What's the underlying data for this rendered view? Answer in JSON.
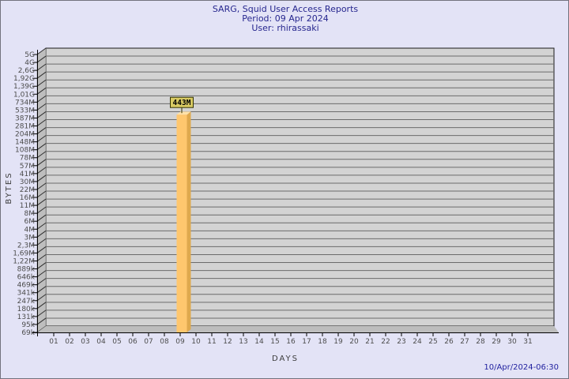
{
  "header": {
    "title": "SARG, Squid User Access Reports",
    "period": "Period: 09 Apr 2024",
    "user": "User: rhirassaki"
  },
  "footer": {
    "generated": "10/Apr/2024-06:30"
  },
  "chart_data": {
    "type": "bar",
    "title": "SARG, Squid User Access Reports",
    "subtitle": "Period: 09 Apr 2024",
    "user_line": "User: rhirassaki",
    "xlabel": "DAYS",
    "ylabel": "BYTES",
    "y_scale": "log",
    "grid": "horizontal",
    "legend": "none",
    "x_categories": [
      "01",
      "02",
      "03",
      "04",
      "05",
      "06",
      "07",
      "08",
      "09",
      "10",
      "11",
      "12",
      "13",
      "14",
      "15",
      "16",
      "17",
      "18",
      "19",
      "20",
      "21",
      "22",
      "23",
      "24",
      "25",
      "26",
      "27",
      "28",
      "29",
      "30",
      "31"
    ],
    "y_ticks": [
      "5G",
      "4G",
      "2,6G",
      "1,92G",
      "1,39G",
      "1,01G",
      "734M",
      "533M",
      "387M",
      "281M",
      "204M",
      "148M",
      "108M",
      "78M",
      "57M",
      "41M",
      "30M",
      "22M",
      "16M",
      "11M",
      "8M",
      "6M",
      "4M",
      "3M",
      "2,3M",
      "1,69M",
      "1,22M",
      "889k",
      "646k",
      "469k",
      "341k",
      "247k",
      "180k",
      "131k",
      "95k",
      "69k"
    ],
    "bars": [
      {
        "x": "09",
        "label": "443M",
        "value": 443000000
      }
    ]
  },
  "colors": {
    "background": "#e3e3f6",
    "border": "#72727e",
    "title_text": "#26268e",
    "timestamp_text": "#2222a0",
    "axis_line": "#000000",
    "tick_text": "#4d4d4d",
    "wall": "#d3d3d3",
    "wall_edge": "#1a1a1a",
    "gridline": "#6b6b6b",
    "side_wall": "#bebebe",
    "side_hatch": "#2f2f2f",
    "floor": "#bdbdbd",
    "bar_front": "#ffc76e",
    "bar_side": "#dfa94e",
    "bar_top": "#ffe2a9",
    "annotation_bg": "#d9cb63",
    "annotation_border": "#333300",
    "annotation_text": "#000000"
  }
}
